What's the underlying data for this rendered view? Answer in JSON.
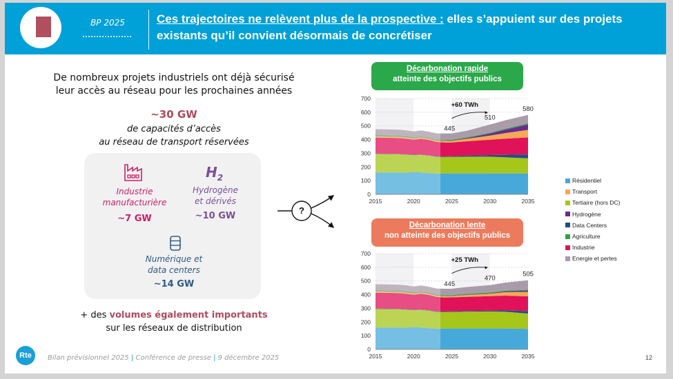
{
  "header": {
    "badge": "BP 2025",
    "title_underlined": "Ces trajectoires ne relèvent plus de la prospective :",
    "title_rest": " elles s’appuient sur des projets existants qu’il convient désormais de concrétiser"
  },
  "left": {
    "intro_line1": "De nombreux projets industriels ont déjà sécurisé",
    "intro_line2": "leur accès au réseau pour les prochaines années",
    "total": "~30 GW",
    "total_sub_line1": "de capacités d’accès",
    "total_sub_line2": "au réseau de transport réservées",
    "categories": [
      {
        "label_line1": "Industrie",
        "label_line2": "manufacturière",
        "value": "~7 GW",
        "icon": "factory-icon",
        "color": "#cc1f6a"
      },
      {
        "label_line1": "Hydrogène",
        "label_line2": "et dérivés",
        "value": "~10 GW",
        "icon": "H",
        "icon_sub": "2",
        "color": "#7a4f9a"
      },
      {
        "label_line1": "Numérique et",
        "label_line2": "data centers",
        "value": "~14 GW",
        "icon": "database-icon",
        "color": "#2f5a86"
      }
    ],
    "plus_prefix": "+ des ",
    "plus_bold": "volumes également importants",
    "plus_line2": "sur les réseaux de distribution"
  },
  "diagram": {
    "question": "?"
  },
  "footer": {
    "part1": "Bilan prévisionnel 2025",
    "sep": "|",
    "part2": "Conférence de presse",
    "part3": "9 décembre 2025",
    "logo": "Rte",
    "page": "12"
  },
  "colors": {
    "header": "#00a0d8",
    "accent": "#b04a5e",
    "rapid": "#2aa84a",
    "slow": "#ec7a5c"
  },
  "chart_data": [
    {
      "type": "area",
      "stacked": true,
      "title_line1": "Décarbonation rapide",
      "title_line2": "atteinte des objectifs publics",
      "xlabel": "",
      "ylabel": "",
      "x": [
        2015,
        2018,
        2019,
        2020,
        2021,
        2022,
        2023,
        2024,
        2025,
        2027,
        2030,
        2032,
        2035
      ],
      "xticks": [
        2015,
        2020,
        2025,
        2030,
        2035
      ],
      "yticks": [
        0,
        100,
        200,
        300,
        400,
        500,
        600,
        700
      ],
      "ylim": [
        0,
        700
      ],
      "historical_until": 2023.5,
      "grid": true,
      "annotations": {
        "delta": "+60 TWh",
        "start": "445",
        "mid": "510",
        "end": "580"
      },
      "series": [
        {
          "name": "Résidentiel",
          "color": "#47a9d9",
          "values": [
            160,
            160,
            158,
            163,
            160,
            155,
            152,
            153,
            153,
            153,
            153,
            153,
            153
          ]
        },
        {
          "name": "Tertiaire (hors DC)",
          "color": "#a6c61a",
          "values": [
            135,
            133,
            132,
            124,
            128,
            128,
            122,
            120,
            121,
            122,
            122,
            118,
            110
          ]
        },
        {
          "name": "Data Centers",
          "color": "#1f4e8c",
          "values": [
            3,
            3,
            3,
            3,
            3,
            3,
            4,
            4,
            5,
            8,
            12,
            18,
            28
          ]
        },
        {
          "name": "Industrie",
          "color": "#e0125a",
          "values": [
            117,
            116,
            114,
            110,
            115,
            112,
            105,
            102,
            100,
            105,
            112,
            118,
            125
          ]
        },
        {
          "name": "Transport",
          "color": "#f7a854",
          "values": [
            10,
            10,
            10,
            10,
            10,
            10,
            10,
            11,
            12,
            18,
            30,
            40,
            55
          ]
        },
        {
          "name": "Hydrogène",
          "color": "#6b2c8e",
          "values": [
            0,
            0,
            0,
            0,
            0,
            0,
            0,
            1,
            2,
            5,
            15,
            25,
            40
          ]
        },
        {
          "name": "Agriculture",
          "color": "#2ca34a",
          "values": [
            6,
            6,
            6,
            6,
            6,
            6,
            6,
            6,
            6,
            6,
            6,
            7,
            7
          ]
        },
        {
          "name": "Energie et pertes",
          "color": "#a99ca8",
          "values": [
            45,
            45,
            45,
            44,
            45,
            44,
            46,
            48,
            46,
            48,
            60,
            62,
            62
          ]
        }
      ]
    },
    {
      "type": "area",
      "stacked": true,
      "title_line1": "Décarbonation lente",
      "title_line2": "non atteinte des objectifs publics",
      "xlabel": "",
      "ylabel": "",
      "x": [
        2015,
        2018,
        2019,
        2020,
        2021,
        2022,
        2023,
        2024,
        2025,
        2027,
        2030,
        2032,
        2035
      ],
      "xticks": [
        2015,
        2020,
        2025,
        2030,
        2035
      ],
      "yticks": [
        0,
        100,
        200,
        300,
        400,
        500,
        600,
        700
      ],
      "ylim": [
        0,
        700
      ],
      "historical_until": 2023.5,
      "grid": true,
      "annotations": {
        "delta": "+25 TWh",
        "start": "445",
        "mid": "470",
        "end": "505"
      },
      "series": [
        {
          "name": "Résidentiel",
          "color": "#47a9d9",
          "values": [
            160,
            160,
            158,
            163,
            160,
            155,
            152,
            153,
            153,
            153,
            153,
            153,
            150
          ]
        },
        {
          "name": "Tertiaire (hors DC)",
          "color": "#a6c61a",
          "values": [
            135,
            133,
            132,
            124,
            128,
            128,
            122,
            120,
            121,
            123,
            124,
            122,
            112
          ]
        },
        {
          "name": "Data Centers",
          "color": "#1f4e8c",
          "values": [
            3,
            3,
            3,
            3,
            3,
            3,
            4,
            4,
            4,
            5,
            6,
            10,
            18
          ]
        },
        {
          "name": "Industrie",
          "color": "#e0125a",
          "values": [
            117,
            116,
            114,
            110,
            115,
            112,
            105,
            102,
            102,
            103,
            106,
            108,
            108
          ]
        },
        {
          "name": "Transport",
          "color": "#f7a854",
          "values": [
            10,
            10,
            10,
            10,
            10,
            10,
            10,
            10,
            10,
            14,
            18,
            25,
            32
          ]
        },
        {
          "name": "Hydrogène",
          "color": "#6b2c8e",
          "values": [
            0,
            0,
            0,
            0,
            0,
            0,
            0,
            0,
            1,
            2,
            3,
            5,
            10
          ]
        },
        {
          "name": "Agriculture",
          "color": "#2ca34a",
          "values": [
            6,
            6,
            6,
            6,
            6,
            6,
            6,
            6,
            6,
            6,
            6,
            6,
            6
          ]
        },
        {
          "name": "Energie et pertes",
          "color": "#a99ca8",
          "values": [
            45,
            45,
            45,
            44,
            45,
            44,
            46,
            48,
            46,
            50,
            54,
            59,
            69
          ]
        }
      ]
    }
  ]
}
